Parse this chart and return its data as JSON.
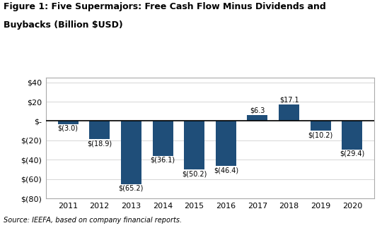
{
  "title_line1": "Figure 1: Five Supermajors: Free Cash Flow Minus Dividends and",
  "title_line2": "Buybacks (Billion $USD)",
  "years": [
    2011,
    2012,
    2013,
    2014,
    2015,
    2016,
    2017,
    2018,
    2019,
    2020
  ],
  "values": [
    -3.0,
    -18.9,
    -65.2,
    -36.1,
    -50.2,
    -46.4,
    6.3,
    17.1,
    -10.2,
    -29.4
  ],
  "labels": [
    "$(3.0)",
    "$(18.9)",
    "$(65.2)",
    "$(36.1)",
    "$(50.2)",
    "$(46.4)",
    "$6.3",
    "$17.1",
    "$(10.2)",
    "$(29.4)"
  ],
  "bar_color": "#1F4E79",
  "ylim": [
    -80,
    45
  ],
  "yticks": [
    -80,
    -60,
    -40,
    -20,
    0,
    20,
    40
  ],
  "ytick_labels": [
    "$(80)",
    "$(60)",
    "$(40)",
    "$(20)",
    "$-",
    "$20",
    "$40"
  ],
  "source": "Source: IEEFA, based on company financial reports.",
  "background_color": "#ffffff",
  "plot_bg_color": "#ffffff",
  "grid_color": "#d0d0d0",
  "border_color": "#aaaaaa"
}
